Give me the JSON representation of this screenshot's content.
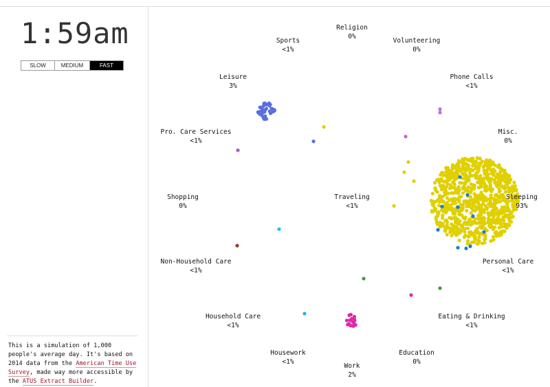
{
  "clock": "1:59am",
  "speeds": [
    {
      "label": "SLOW",
      "active": false
    },
    {
      "label": "MEDIUM",
      "active": false
    },
    {
      "label": "FAST",
      "active": true
    }
  ],
  "note": {
    "prefix": "This is a simulation of 1,000 people's average day. It's based on 2014 data from the ",
    "link1": "American Time Use Survey",
    "middle": ", made way more accessible by the ",
    "link2": "ATUS Extract Builder",
    "suffix": "."
  },
  "activities": [
    {
      "name": "Religion",
      "pct": "0%"
    },
    {
      "name": "Sports",
      "pct": "<1%"
    },
    {
      "name": "Volunteering",
      "pct": "0%"
    },
    {
      "name": "Leisure",
      "pct": "3%"
    },
    {
      "name": "Phone Calls",
      "pct": "<1%"
    },
    {
      "name": "Pro. Care Services",
      "pct": "<1%"
    },
    {
      "name": "Misc.",
      "pct": "0%"
    },
    {
      "name": "Shopping",
      "pct": "0%"
    },
    {
      "name": "Traveling",
      "pct": "<1%"
    },
    {
      "name": "Sleeping",
      "pct": "93%"
    },
    {
      "name": "Non-Household Care",
      "pct": "<1%"
    },
    {
      "name": "Personal Care",
      "pct": "<1%"
    },
    {
      "name": "Household Care",
      "pct": "<1%"
    },
    {
      "name": "Eating & Drinking",
      "pct": "<1%"
    },
    {
      "name": "Housework",
      "pct": "<1%"
    },
    {
      "name": "Education",
      "pct": "0%"
    },
    {
      "name": "Work",
      "pct": "2%"
    }
  ],
  "colors": {
    "sleeping": "#e0d000",
    "leisure": "#5b6ee0",
    "work": "#e02aa8",
    "personal_care": "#1a7bd6",
    "eating": "#3aa030",
    "phone": "#c070e0",
    "traveling": "#20c0e0",
    "non_household_care": "#8a4030",
    "pro_care": "#a060d0",
    "household_care": "#20b8d8",
    "misc": "#d060d0"
  }
}
